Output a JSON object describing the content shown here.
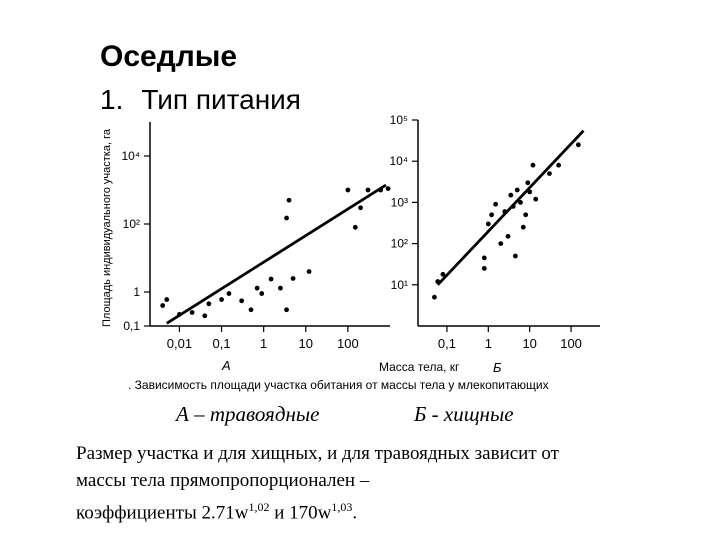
{
  "slide": {
    "title": "Оседлые",
    "list_number": "1.",
    "list_item": "Тип питания"
  },
  "figure": {
    "caption": ". Зависимость площади участка обитания от массы тела у млекопитающих",
    "label_A_caption": "А – травоядные",
    "label_B_caption": "Б - хищные"
  },
  "text": {
    "line1": "Размер участка и для хищных, и для травоядных зависит от",
    "line2": "массы тела прямопропорционален –",
    "line3_prefix": "коэффициенты 2.71w",
    "exp1": "1,02",
    "line3_mid": " и 170w",
    "exp2": "1,03",
    "line3_suffix": "."
  },
  "chart_data": [
    {
      "type": "scatter",
      "panel_label": "А",
      "title": "",
      "ylabel": "Площадь индивидуального участка, га",
      "xlabel": "",
      "x_scale": "log",
      "y_scale": "log",
      "x_ticks": [
        "0,01",
        "0,1",
        "1",
        "10",
        "100"
      ],
      "y_ticks": [
        "0,1",
        "1",
        "10²",
        "10⁴"
      ],
      "xlim": [
        0.002,
        1000
      ],
      "ylim": [
        0.1,
        100000
      ],
      "points": [
        {
          "x": 0.004,
          "y": 0.4
        },
        {
          "x": 0.005,
          "y": 0.6
        },
        {
          "x": 0.01,
          "y": 0.22
        },
        {
          "x": 0.02,
          "y": 0.25
        },
        {
          "x": 0.04,
          "y": 0.2
        },
        {
          "x": 0.05,
          "y": 0.45
        },
        {
          "x": 0.1,
          "y": 0.6
        },
        {
          "x": 0.15,
          "y": 0.9
        },
        {
          "x": 0.3,
          "y": 0.55
        },
        {
          "x": 0.5,
          "y": 0.3
        },
        {
          "x": 0.7,
          "y": 1.3
        },
        {
          "x": 0.9,
          "y": 0.9
        },
        {
          "x": 1.5,
          "y": 2.4
        },
        {
          "x": 2.5,
          "y": 1.3
        },
        {
          "x": 3.5,
          "y": 0.3
        },
        {
          "x": 3.5,
          "y": 150
        },
        {
          "x": 4,
          "y": 500
        },
        {
          "x": 5,
          "y": 2.5
        },
        {
          "x": 12,
          "y": 4
        },
        {
          "x": 100,
          "y": 1000
        },
        {
          "x": 150,
          "y": 80
        },
        {
          "x": 200,
          "y": 300
        },
        {
          "x": 300,
          "y": 1000
        },
        {
          "x": 600,
          "y": 1000
        },
        {
          "x": 900,
          "y": 1100
        }
      ],
      "fit_line": {
        "x": [
          0.005,
          800
        ],
        "y": [
          0.12,
          1400
        ]
      }
    },
    {
      "type": "scatter",
      "panel_label": "Б",
      "title": "",
      "ylabel": "",
      "xlabel": "Масса тела, кг",
      "x_scale": "log",
      "y_scale": "log",
      "x_ticks": [
        "0,1",
        "1",
        "10",
        "100"
      ],
      "y_ticks": [
        "10¹",
        "10²",
        "10³",
        "10⁴",
        "10⁵"
      ],
      "xlim": [
        0.02,
        500
      ],
      "ylim": [
        1,
        100000
      ],
      "points": [
        {
          "x": 0.05,
          "y": 5
        },
        {
          "x": 0.06,
          "y": 12
        },
        {
          "x": 0.08,
          "y": 18
        },
        {
          "x": 0.8,
          "y": 25
        },
        {
          "x": 0.8,
          "y": 45
        },
        {
          "x": 1,
          "y": 300
        },
        {
          "x": 1.2,
          "y": 500
        },
        {
          "x": 1.5,
          "y": 900
        },
        {
          "x": 2,
          "y": 100
        },
        {
          "x": 2.5,
          "y": 600
        },
        {
          "x": 3,
          "y": 150
        },
        {
          "x": 3.5,
          "y": 1500
        },
        {
          "x": 4,
          "y": 800
        },
        {
          "x": 4.5,
          "y": 50
        },
        {
          "x": 5,
          "y": 2000
        },
        {
          "x": 6,
          "y": 1000
        },
        {
          "x": 7,
          "y": 250
        },
        {
          "x": 8,
          "y": 500
        },
        {
          "x": 9,
          "y": 3000
        },
        {
          "x": 10,
          "y": 1800
        },
        {
          "x": 12,
          "y": 8000
        },
        {
          "x": 14,
          "y": 1200
        },
        {
          "x": 30,
          "y": 5000
        },
        {
          "x": 50,
          "y": 8000
        },
        {
          "x": 150,
          "y": 25000
        }
      ],
      "fit_line": {
        "x": [
          0.06,
          200
        ],
        "y": [
          10,
          55000
        ]
      }
    }
  ]
}
